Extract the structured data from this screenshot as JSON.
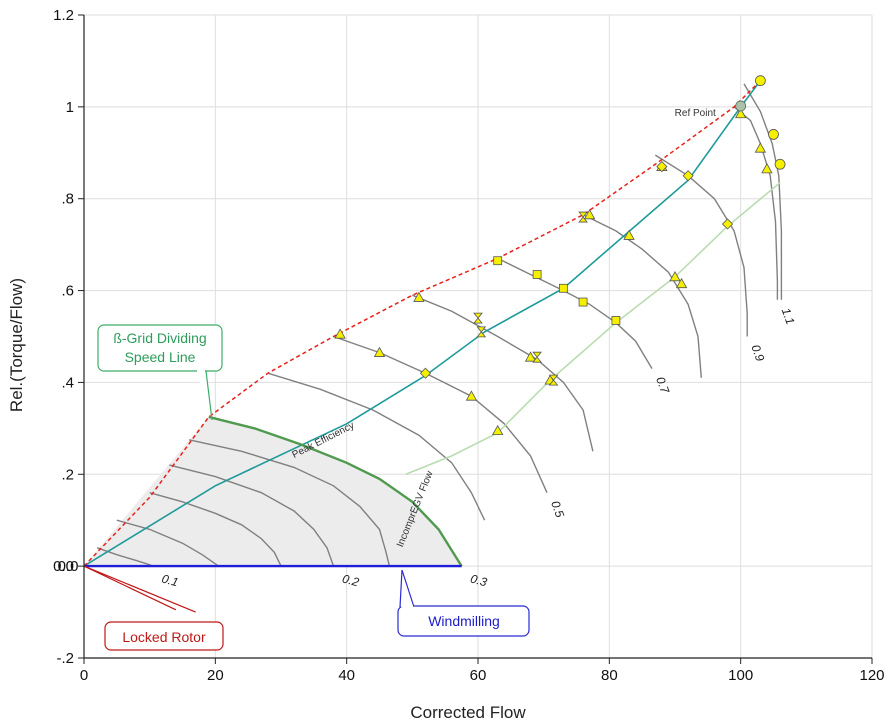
{
  "chart_data": {
    "type": "line",
    "xlabel": "Corrected Flow",
    "ylabel": "Rel.(Torque/Flow)",
    "xlim": [
      0,
      120
    ],
    "ylim": [
      -0.2,
      1.2
    ],
    "x_ticks": [
      {
        "value": 0,
        "label": "0"
      },
      {
        "value": 20,
        "label": "20"
      },
      {
        "value": 40,
        "label": "40"
      },
      {
        "value": 60,
        "label": "60"
      },
      {
        "value": 80,
        "label": "80"
      },
      {
        "value": 100,
        "label": "100"
      },
      {
        "value": 120,
        "label": "120"
      }
    ],
    "y_ticks": [
      {
        "value": -0.2,
        "label": "-.2"
      },
      {
        "value": 0,
        "label": "0.0"
      },
      {
        "value": 0.2,
        "label": ".2"
      },
      {
        "value": 0.4,
        "label": ".4"
      },
      {
        "value": 0.6,
        "label": ".6"
      },
      {
        "value": 0.8,
        "label": ".8"
      },
      {
        "value": 1.0,
        "label": "1"
      },
      {
        "value": 1.2,
        "label": "1.2"
      }
    ],
    "grid": true,
    "colors": {
      "speed_line": "#808080",
      "surge_line": "#e8201a",
      "peak_efficiency": "#1e9a9a",
      "incompr_egv": "#b9dcb0",
      "beta_grid_line": "#4f9a4f",
      "windmilling": "#1e1ed8",
      "locked_rotor": "#c01818",
      "shaded_region": "#ececec",
      "marker_fill": "#f5f000",
      "ref_point_fill": "#a9c2a9"
    },
    "speed_lines": [
      {
        "label": "0.1",
        "points": [
          [
            2,
            0.04
          ],
          [
            5,
            0.025
          ],
          [
            8,
            0.012
          ],
          [
            10,
            0.003
          ],
          [
            10.5,
            0
          ]
        ]
      },
      {
        "label": "",
        "points": [
          [
            5,
            0.1
          ],
          [
            10,
            0.08
          ],
          [
            15,
            0.05
          ],
          [
            18,
            0.025
          ],
          [
            20,
            0.005
          ],
          [
            20.5,
            0
          ]
        ]
      },
      {
        "label": "",
        "points": [
          [
            10,
            0.16
          ],
          [
            15,
            0.14
          ],
          [
            20,
            0.115
          ],
          [
            24,
            0.09
          ],
          [
            27,
            0.06
          ],
          [
            29,
            0.03
          ],
          [
            30,
            0
          ]
        ]
      },
      {
        "label": "0.2",
        "points": [
          [
            13,
            0.22
          ],
          [
            20,
            0.195
          ],
          [
            27,
            0.16
          ],
          [
            32,
            0.12
          ],
          [
            35,
            0.08
          ],
          [
            37,
            0.04
          ],
          [
            38,
            0
          ]
        ]
      },
      {
        "label": "",
        "points": [
          [
            16,
            0.275
          ],
          [
            24,
            0.25
          ],
          [
            32,
            0.215
          ],
          [
            38,
            0.175
          ],
          [
            42,
            0.13
          ],
          [
            45,
            0.08
          ],
          [
            46,
            0.03
          ],
          [
            46.5,
            0
          ]
        ]
      },
      {
        "label": "0.3",
        "points": [
          [
            19,
            0.325
          ],
          [
            26,
            0.3
          ],
          [
            33,
            0.265
          ],
          [
            40,
            0.225
          ],
          [
            45,
            0.19
          ],
          [
            50,
            0.14
          ],
          [
            54,
            0.08
          ],
          [
            57.5,
            0
          ]
        ]
      },
      {
        "label": "",
        "points": [
          [
            28,
            0.42
          ],
          [
            36,
            0.385
          ],
          [
            44,
            0.34
          ],
          [
            51,
            0.285
          ],
          [
            56,
            0.225
          ],
          [
            59,
            0.16
          ],
          [
            61,
            0.1
          ]
        ]
      },
      {
        "label": "0.5",
        "points": [
          [
            38,
            0.5
          ],
          [
            45,
            0.465
          ],
          [
            52,
            0.42
          ],
          [
            59,
            0.37
          ],
          [
            64,
            0.31
          ],
          [
            68,
            0.24
          ],
          [
            70.5,
            0.16
          ]
        ]
      },
      {
        "label": "",
        "points": [
          [
            50,
            0.59
          ],
          [
            56,
            0.555
          ],
          [
            63,
            0.5
          ],
          [
            69,
            0.45
          ],
          [
            73,
            0.4
          ],
          [
            76,
            0.34
          ],
          [
            77.5,
            0.25
          ]
        ]
      },
      {
        "label": "0.7",
        "points": [
          [
            63,
            0.67
          ],
          [
            68,
            0.635
          ],
          [
            73,
            0.6
          ],
          [
            77,
            0.57
          ],
          [
            81,
            0.53
          ],
          [
            84,
            0.49
          ],
          [
            86.5,
            0.43
          ]
        ]
      },
      {
        "label": "",
        "points": [
          [
            76,
            0.765
          ],
          [
            81,
            0.73
          ],
          [
            85,
            0.69
          ],
          [
            89,
            0.64
          ],
          [
            92,
            0.57
          ],
          [
            93.5,
            0.5
          ],
          [
            94,
            0.41
          ]
        ]
      },
      {
        "label": "0.9",
        "points": [
          [
            87,
            0.895
          ],
          [
            92,
            0.85
          ],
          [
            96,
            0.8
          ],
          [
            99,
            0.73
          ],
          [
            100.5,
            0.65
          ],
          [
            101,
            0.55
          ],
          [
            101,
            0.5
          ]
        ]
      },
      {
        "label": "1.1",
        "points": [
          [
            99,
            1.0
          ],
          [
            101.5,
            0.97
          ],
          [
            103,
            0.92
          ],
          [
            104.5,
            0.85
          ],
          [
            105.3,
            0.75
          ],
          [
            105.6,
            0.62
          ],
          [
            105.6,
            0.58
          ]
        ]
      },
      {
        "label": "",
        "points": [
          [
            100.5,
            1.05
          ],
          [
            103,
            0.99
          ],
          [
            104.8,
            0.92
          ],
          [
            105.8,
            0.85
          ],
          [
            106.2,
            0.73
          ],
          [
            106.2,
            0.58
          ]
        ]
      }
    ],
    "surge_line": [
      [
        0,
        0
      ],
      [
        10,
        0.15
      ],
      [
        19,
        0.325
      ],
      [
        28,
        0.42
      ],
      [
        38,
        0.5
      ],
      [
        50,
        0.59
      ],
      [
        63,
        0.67
      ],
      [
        76,
        0.765
      ],
      [
        87,
        0.875
      ],
      [
        99,
        1.0
      ],
      [
        103,
        1.057
      ]
    ],
    "peak_efficiency_line": [
      [
        0,
        0
      ],
      [
        20,
        0.175
      ],
      [
        40,
        0.31
      ],
      [
        52,
        0.415
      ],
      [
        61,
        0.51
      ],
      [
        73,
        0.605
      ],
      [
        92,
        0.84
      ],
      [
        100,
        1.0
      ],
      [
        103,
        1.057
      ]
    ],
    "incompr_egv_line": [
      [
        49,
        0.2
      ],
      [
        56,
        0.24
      ],
      [
        63,
        0.29
      ],
      [
        71,
        0.405
      ],
      [
        81,
        0.53
      ],
      [
        90,
        0.63
      ],
      [
        98,
        0.74
      ],
      [
        106,
        0.835
      ]
    ],
    "beta_grid_line": [
      [
        19,
        0.325
      ],
      [
        26,
        0.3
      ],
      [
        33,
        0.265
      ],
      [
        40,
        0.225
      ],
      [
        45,
        0.19
      ],
      [
        50,
        0.14
      ],
      [
        54,
        0.08
      ],
      [
        57.5,
        0
      ]
    ],
    "shaded_region": [
      [
        0,
        0
      ],
      [
        19,
        0.325
      ],
      [
        26,
        0.3
      ],
      [
        33,
        0.265
      ],
      [
        40,
        0.225
      ],
      [
        45,
        0.19
      ],
      [
        50,
        0.14
      ],
      [
        54,
        0.08
      ],
      [
        57.5,
        0
      ]
    ],
    "windmilling_line": [
      [
        0,
        0
      ],
      [
        57.5,
        0
      ]
    ],
    "locked_rotor_lines": [
      [
        [
          0,
          0
        ],
        [
          17,
          -0.1
        ]
      ],
      [
        [
          0,
          0
        ],
        [
          14,
          -0.095
        ]
      ]
    ],
    "markers": {
      "triangle_up": [
        [
          39,
          0.505
        ],
        [
          45,
          0.465
        ],
        [
          51,
          0.585
        ],
        [
          59,
          0.37
        ],
        [
          63,
          0.295
        ],
        [
          68,
          0.455
        ],
        [
          71,
          0.405
        ],
        [
          77,
          0.765
        ],
        [
          83,
          0.72
        ],
        [
          90,
          0.63
        ],
        [
          91,
          0.615
        ],
        [
          100,
          0.985
        ],
        [
          103,
          0.91
        ],
        [
          104,
          0.865
        ],
        [
          88,
          0.87
        ]
      ],
      "hourglass": [
        [
          60,
          0.54
        ],
        [
          60.5,
          0.51
        ],
        [
          71.5,
          0.405
        ],
        [
          69,
          0.455
        ],
        [
          76,
          0.76
        ]
      ],
      "square": [
        [
          63,
          0.665
        ],
        [
          69,
          0.635
        ],
        [
          73,
          0.605
        ],
        [
          76,
          0.575
        ],
        [
          81,
          0.535
        ]
      ],
      "diamond": [
        [
          52,
          0.42
        ],
        [
          88,
          0.87
        ],
        [
          92,
          0.85
        ],
        [
          98,
          0.745
        ]
      ],
      "circle": [
        [
          103,
          1.057
        ],
        [
          105,
          0.94
        ],
        [
          106,
          0.875
        ]
      ],
      "ref_point": [
        100,
        1.002
      ]
    },
    "annotations": {
      "ref_point": "Ref Point",
      "peak_efficiency": "Peak Efficiency",
      "incompr_egv": "IncomprEGV Flow",
      "origin_label": "0.0"
    },
    "callouts": {
      "beta_grid": {
        "line1": "ß-Grid Dividing",
        "line2": "Speed Line"
      },
      "windmilling": "Windmilling",
      "locked_rotor": "Locked Rotor"
    }
  }
}
